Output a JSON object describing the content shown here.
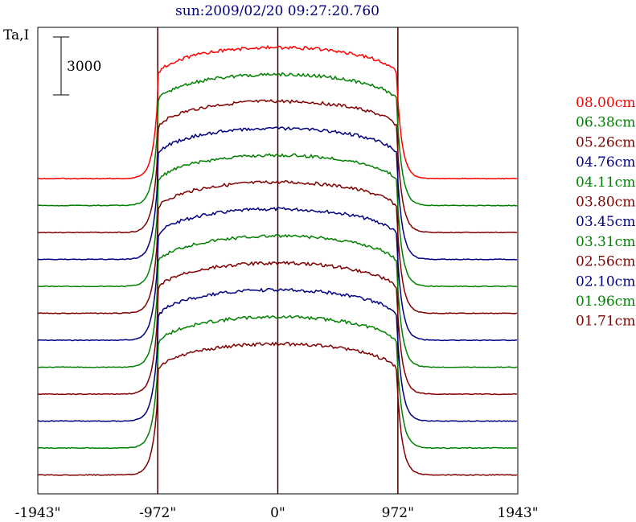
{
  "chart_data": {
    "type": "line",
    "title": "sun:2009/02/20 09:27:20.760",
    "ylabel": "Ta,I",
    "scale_bar_label": "3000",
    "scale_bar_value": 3000,
    "x_ticks": [
      {
        "label": "-1943\"",
        "value": -1943
      },
      {
        "label": "-972\"",
        "value": -972
      },
      {
        "label": "0\"",
        "value": 0
      },
      {
        "label": "972\"",
        "value": 972
      },
      {
        "label": "1943\"",
        "value": 1943
      }
    ],
    "xlim": [
      -1943,
      1943
    ],
    "vertical_lines": [
      -972,
      0,
      972
    ],
    "stacked_offsets": true,
    "series": [
      {
        "name": "08.00cm",
        "color": "#ff0000",
        "baseline": 0,
        "peak": 5800
      },
      {
        "name": "06.38cm",
        "color": "#008000",
        "baseline": 0,
        "peak": 5800
      },
      {
        "name": "05.26cm",
        "color": "#800000",
        "baseline": 0,
        "peak": 5800
      },
      {
        "name": "04.76cm",
        "color": "#000080",
        "baseline": 0,
        "peak": 5800
      },
      {
        "name": "04.11cm",
        "color": "#008000",
        "baseline": 0,
        "peak": 5800
      },
      {
        "name": "03.80cm",
        "color": "#800000",
        "baseline": 0,
        "peak": 5800
      },
      {
        "name": "03.45cm",
        "color": "#000080",
        "baseline": 0,
        "peak": 5800
      },
      {
        "name": "03.31cm",
        "color": "#008000",
        "baseline": 0,
        "peak": 5800
      },
      {
        "name": "02.56cm",
        "color": "#800000",
        "baseline": 0,
        "peak": 5800
      },
      {
        "name": "02.10cm",
        "color": "#000080",
        "baseline": 0,
        "peak": 5800
      },
      {
        "name": "01.96cm",
        "color": "#008000",
        "baseline": 0,
        "peak": 5800
      },
      {
        "name": "01.71cm",
        "color": "#800000",
        "baseline": 0,
        "peak": 5800
      }
    ],
    "legend_placement": "right"
  }
}
